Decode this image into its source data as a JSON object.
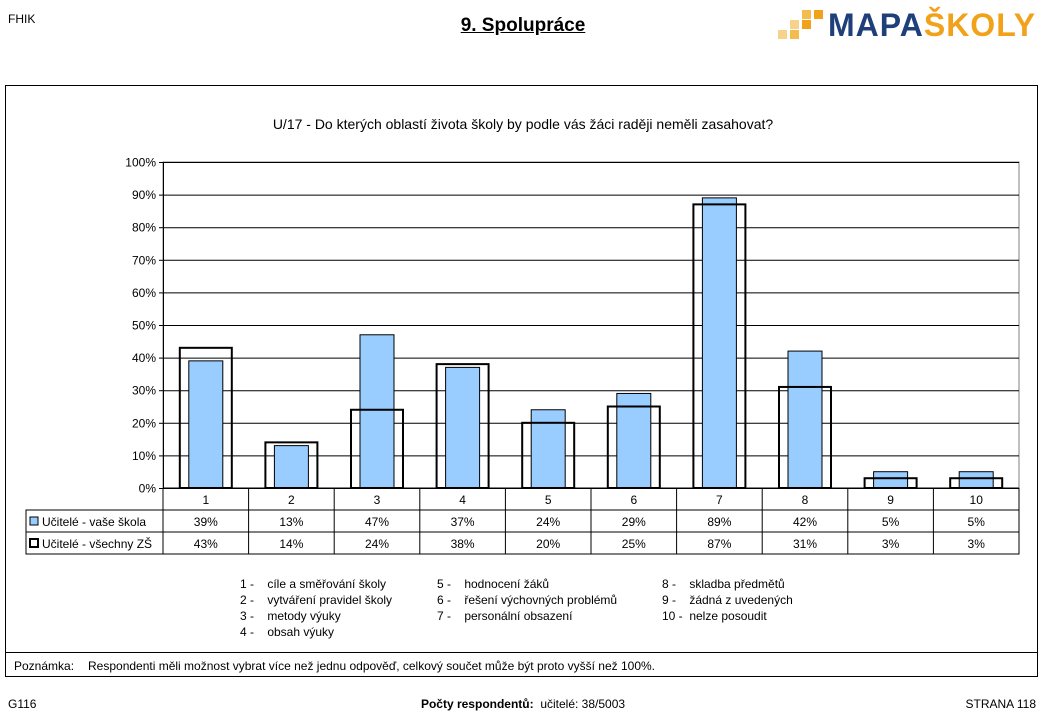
{
  "header": {
    "school_code": "FHIK",
    "page_title": "9. Spolupráce",
    "logo": {
      "part1": "MAPA",
      "part2": "ŠKOLY",
      "colors": [
        "#1f3f7a",
        "#f2a21a"
      ]
    }
  },
  "chart_data": {
    "type": "bar",
    "title": "U/17 - Do kterých oblastí života školy by podle vás žáci raději neměli zasahovat?",
    "categories": [
      "1",
      "2",
      "3",
      "4",
      "5",
      "6",
      "7",
      "8",
      "9",
      "10"
    ],
    "ylim": [
      0,
      100
    ],
    "yticks": [
      "0%",
      "10%",
      "20%",
      "30%",
      "40%",
      "50%",
      "60%",
      "70%",
      "80%",
      "90%",
      "100%"
    ],
    "grid": true,
    "series": [
      {
        "name": "Učitelé - vaše škola",
        "style": "filled",
        "color": "#99ccff",
        "values": [
          39,
          13,
          47,
          37,
          24,
          29,
          89,
          42,
          5,
          5
        ],
        "labels": [
          "39%",
          "13%",
          "47%",
          "37%",
          "24%",
          "29%",
          "89%",
          "42%",
          "5%",
          "5%"
        ]
      },
      {
        "name": "Učitelé - všechny ZŠ",
        "style": "outline",
        "color": "#000000",
        "values": [
          43,
          14,
          24,
          38,
          20,
          25,
          87,
          31,
          3,
          3
        ],
        "labels": [
          "43%",
          "14%",
          "24%",
          "38%",
          "20%",
          "25%",
          "87%",
          "31%",
          "3%",
          "3%"
        ]
      }
    ]
  },
  "legend_codes": [
    {
      "num": "1",
      "text": "cíle a směřování školy"
    },
    {
      "num": "2",
      "text": "vytváření pravidel školy"
    },
    {
      "num": "3",
      "text": "metody výuky"
    },
    {
      "num": "4",
      "text": "obsah výuky"
    },
    {
      "num": "5",
      "text": "hodnocení žáků"
    },
    {
      "num": "6",
      "text": "řešení výchovných problémů"
    },
    {
      "num": "7",
      "text": "personální obsazení"
    },
    {
      "num": "8",
      "text": "skladba předmětů"
    },
    {
      "num": "9",
      "text": "žádná z uvedených"
    },
    {
      "num": "10",
      "text": "nelze posoudit"
    }
  ],
  "note": {
    "label": "Poznámka:",
    "text": "Respondenti měli možnost vybrat více než jednu odpověď, celkový součet může být proto vyšší než 100%."
  },
  "footer": {
    "code": "G116",
    "respondents_label": "Počty respondentů:",
    "respondents_value": "učitelé: 38/5003",
    "page": "STRANA 118"
  }
}
